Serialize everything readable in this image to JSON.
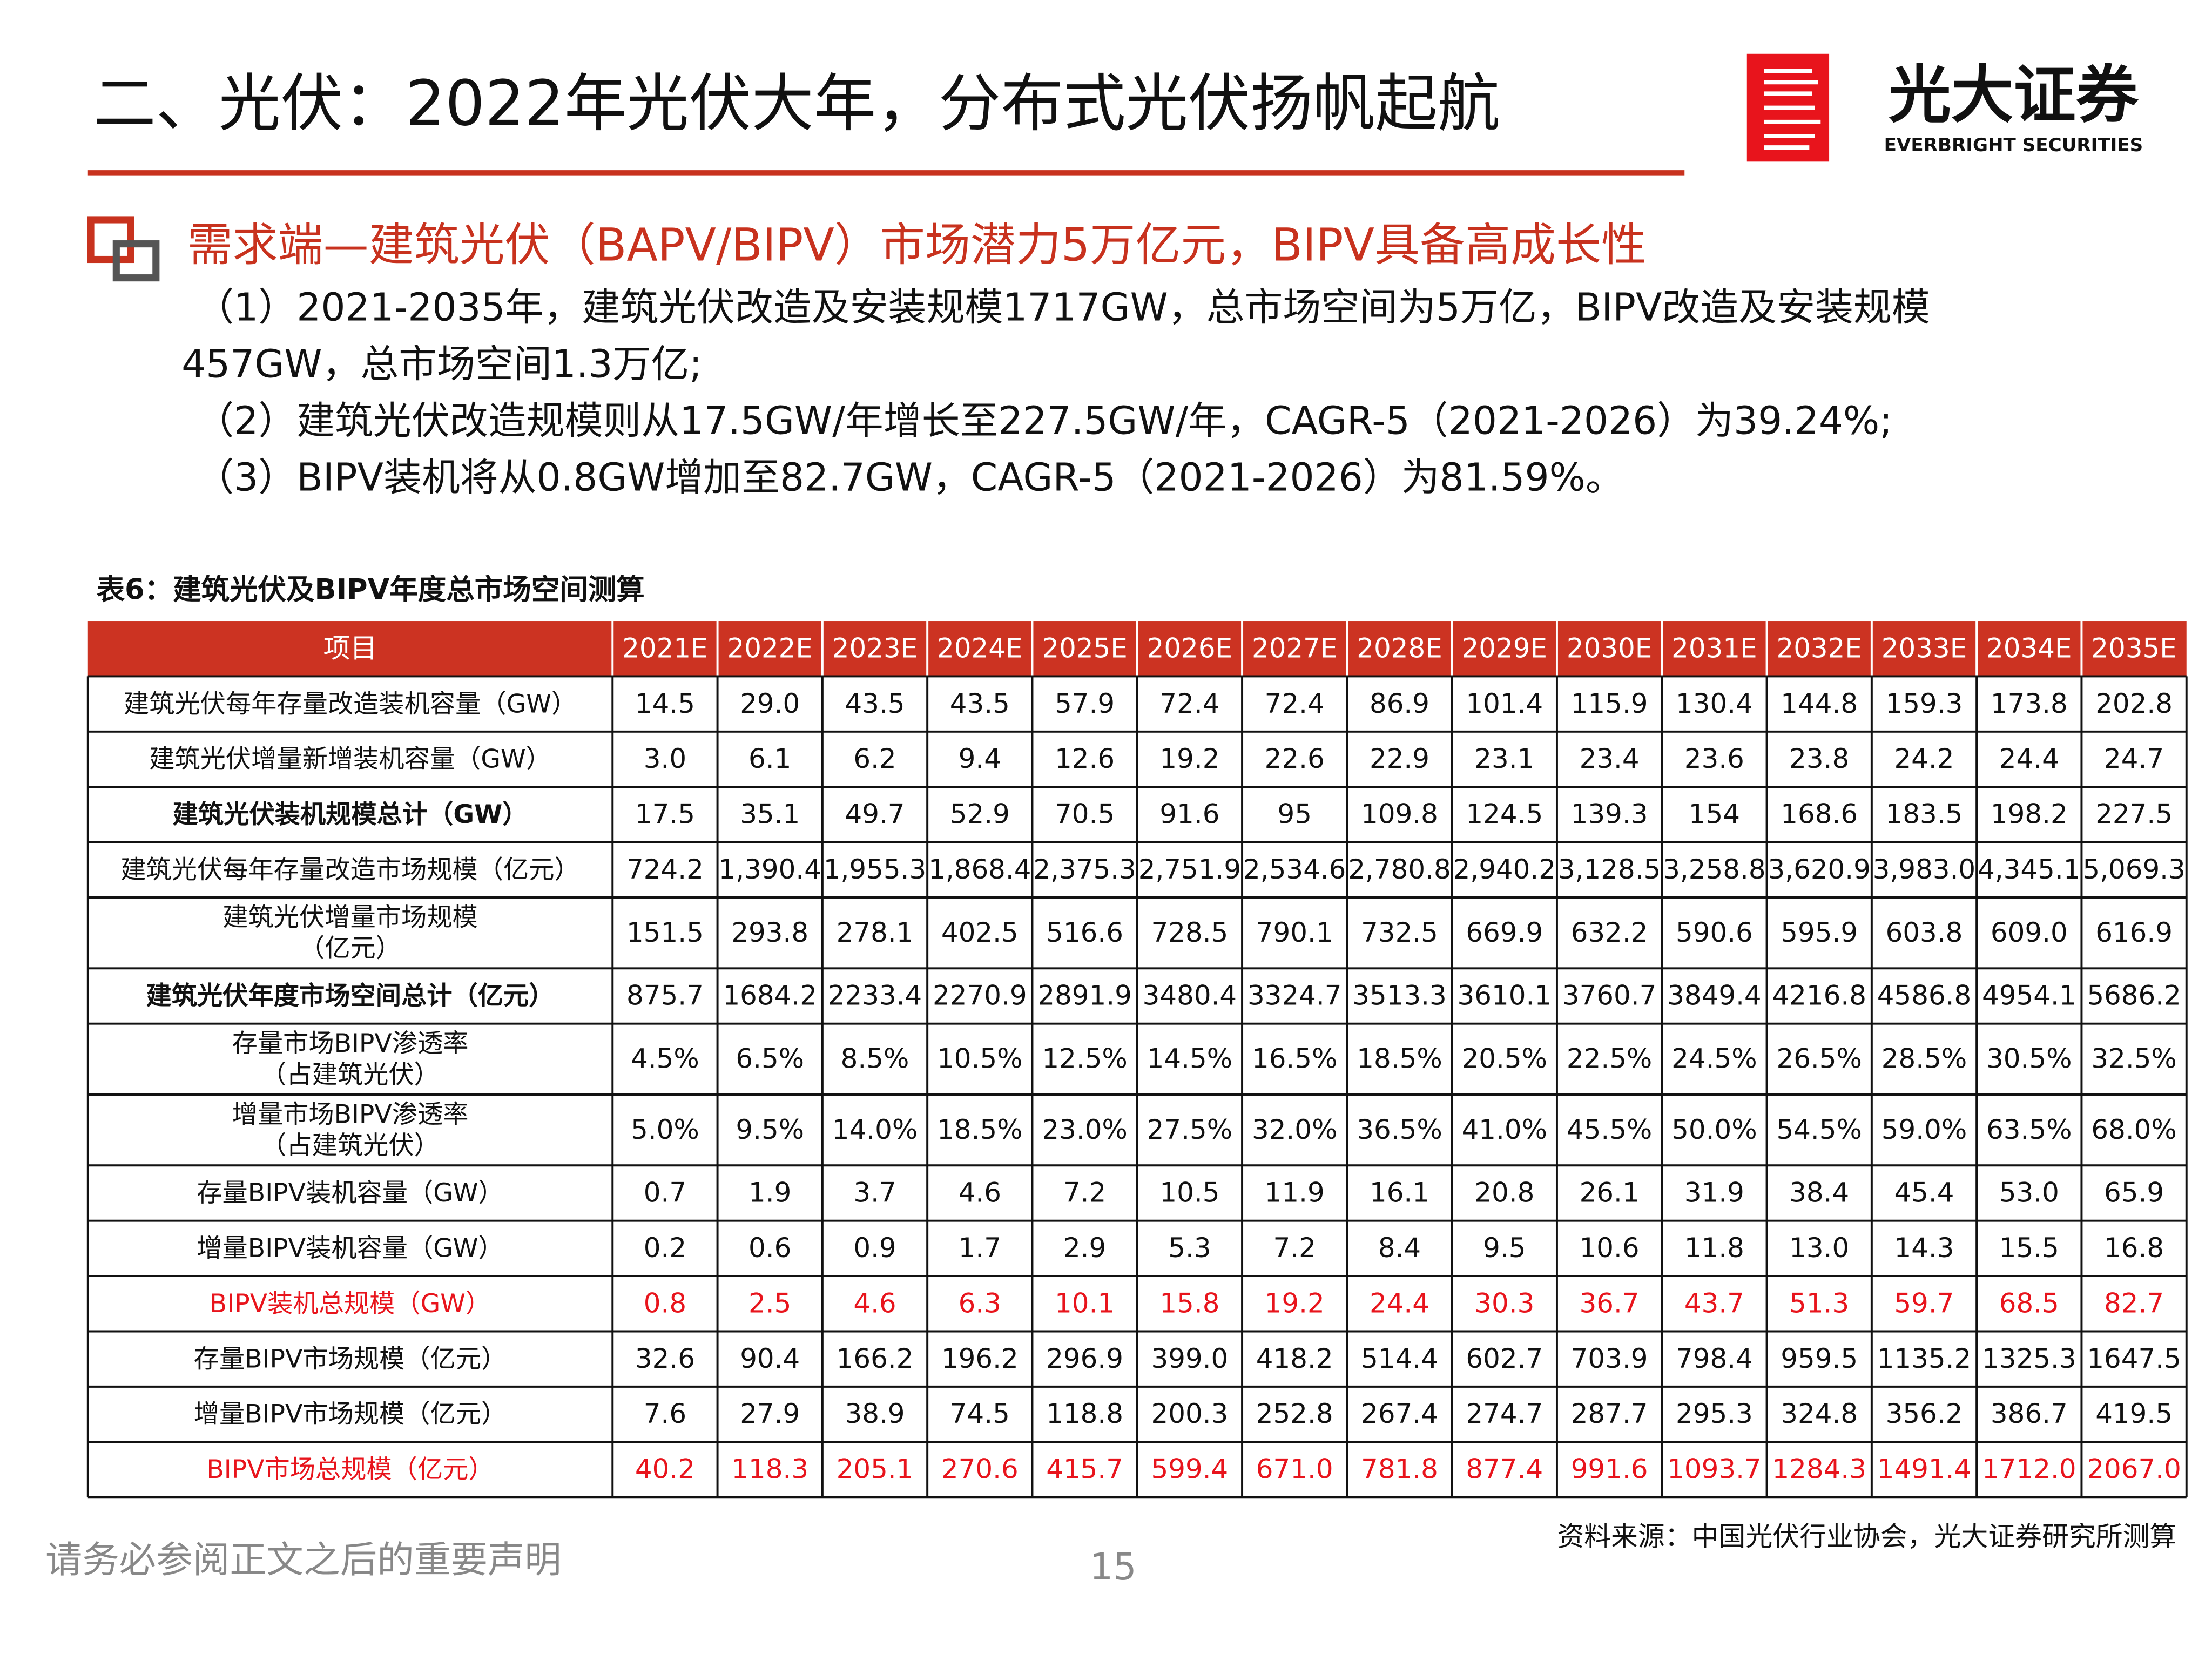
{
  "header": {
    "title": "二、光伏：2022年光伏大年，分布式光伏扬帆起航",
    "logo_name": "光大证券",
    "logo_en": "EVERBRIGHT SECURITIES"
  },
  "subtitle": "需求端—建筑光伏（BAPV/BIPV）市场潜力5万亿元，BIPV具备高成长性",
  "bullets": [
    "（1）2021-2035年，建筑光伏改造及安装规模1717GW，总市场空间为5万亿，BIPV改造及安装规模457GW，总市场空间1.3万亿;",
    "（2）建筑光伏改造规模则从17.5GW/年增长至227.5GW/年，CAGR-5（2021-2026）为39.24%;",
    "（3）BIPV装机将从0.8GW增加至82.7GW，CAGR-5（2021-2026）为81.59%。"
  ],
  "table": {
    "caption": "表6：建筑光伏及BIPV年度总市场空间测算",
    "header": [
      "项目",
      "2021E",
      "2022E",
      "2023E",
      "2024E",
      "2025E",
      "2026E",
      "2027E",
      "2028E",
      "2029E",
      "2030E",
      "2031E",
      "2032E",
      "2033E",
      "2034E",
      "2035E"
    ],
    "header_color": "#cc3322",
    "rows": [
      {
        "label": [
          "建筑光伏每年存量改造装机容量（GW）"
        ],
        "cells": [
          "14.5",
          "29.0",
          "43.5",
          "43.5",
          "57.9",
          "72.4",
          "72.4",
          "86.9",
          "101.4",
          "115.9",
          "130.4",
          "144.8",
          "159.3",
          "173.8",
          "202.8"
        ]
      },
      {
        "label": [
          "建筑光伏增量新增装机容量（GW）"
        ],
        "cells": [
          "3.0",
          "6.1",
          "6.2",
          "9.4",
          "12.6",
          "19.2",
          "22.6",
          "22.9",
          "23.1",
          "23.4",
          "23.6",
          "23.8",
          "24.2",
          "24.4",
          "24.7"
        ]
      },
      {
        "label": [
          "建筑光伏装机规模总计（GW）"
        ],
        "bold": true,
        "cells": [
          "17.5",
          "35.1",
          "49.7",
          "52.9",
          "70.5",
          "91.6",
          "95",
          "109.8",
          "124.5",
          "139.3",
          "154",
          "168.6",
          "183.5",
          "198.2",
          "227.5"
        ]
      },
      {
        "label": [
          "建筑光伏每年存量改造市场规模（亿元）"
        ],
        "cells": [
          "724.2",
          "1,390.4",
          "1,955.3",
          "1,868.4",
          "2,375.3",
          "2,751.9",
          "2,534.6",
          "2,780.8",
          "2,940.2",
          "3,128.5",
          "3,258.8",
          "3,620.9",
          "3,983.0",
          "4,345.1",
          "5,069.3"
        ]
      },
      {
        "label": [
          "建筑光伏增量市场规模",
          "（亿元）"
        ],
        "cells": [
          "151.5",
          "293.8",
          "278.1",
          "402.5",
          "516.6",
          "728.5",
          "790.1",
          "732.5",
          "669.9",
          "632.2",
          "590.6",
          "595.9",
          "603.8",
          "609.0",
          "616.9"
        ]
      },
      {
        "label": [
          "建筑光伏年度市场空间总计（亿元）"
        ],
        "bold": true,
        "cells": [
          "875.7",
          "1684.2",
          "2233.4",
          "2270.9",
          "2891.9",
          "3480.4",
          "3324.7",
          "3513.3",
          "3610.1",
          "3760.7",
          "3849.4",
          "4216.8",
          "4586.8",
          "4954.1",
          "5686.2"
        ]
      },
      {
        "label": [
          "存量市场BIPV渗透率",
          "（占建筑光伏）"
        ],
        "cells": [
          "4.5%",
          "6.5%",
          "8.5%",
          "10.5%",
          "12.5%",
          "14.5%",
          "16.5%",
          "18.5%",
          "20.5%",
          "22.5%",
          "24.5%",
          "26.5%",
          "28.5%",
          "30.5%",
          "32.5%"
        ]
      },
      {
        "label": [
          "增量市场BIPV渗透率",
          "（占建筑光伏）"
        ],
        "cells": [
          "5.0%",
          "9.5%",
          "14.0%",
          "18.5%",
          "23.0%",
          "27.5%",
          "32.0%",
          "36.5%",
          "41.0%",
          "45.5%",
          "50.0%",
          "54.5%",
          "59.0%",
          "63.5%",
          "68.0%"
        ]
      },
      {
        "label": [
          "存量BIPV装机容量（GW）"
        ],
        "cells": [
          "0.7",
          "1.9",
          "3.7",
          "4.6",
          "7.2",
          "10.5",
          "11.9",
          "16.1",
          "20.8",
          "26.1",
          "31.9",
          "38.4",
          "45.4",
          "53.0",
          "65.9"
        ]
      },
      {
        "label": [
          "增量BIPV装机容量（GW）"
        ],
        "cells": [
          "0.2",
          "0.6",
          "0.9",
          "1.7",
          "2.9",
          "5.3",
          "7.2",
          "8.4",
          "9.5",
          "10.6",
          "11.8",
          "13.0",
          "14.3",
          "15.5",
          "16.8"
        ]
      },
      {
        "label": [
          "BIPV装机总规模（GW）"
        ],
        "color": "#e8141c",
        "cells": [
          "0.8",
          "2.5",
          "4.6",
          "6.3",
          "10.1",
          "15.8",
          "19.2",
          "24.4",
          "30.3",
          "36.7",
          "43.7",
          "51.3",
          "59.7",
          "68.5",
          "82.7"
        ]
      },
      {
        "label": [
          "存量BIPV市场规模（亿元）"
        ],
        "cells": [
          "32.6",
          "90.4",
          "166.2",
          "196.2",
          "296.9",
          "399.0",
          "418.2",
          "514.4",
          "602.7",
          "703.9",
          "798.4",
          "959.5",
          "1135.2",
          "1325.3",
          "1647.5"
        ]
      },
      {
        "label": [
          "增量BIPV市场规模（亿元）"
        ],
        "cells": [
          "7.6",
          "27.9",
          "38.9",
          "74.5",
          "118.8",
          "200.3",
          "252.8",
          "267.4",
          "274.7",
          "287.7",
          "295.3",
          "324.8",
          "356.2",
          "386.7",
          "419.5"
        ]
      },
      {
        "label": [
          "BIPV市场总规模（亿元）"
        ],
        "color": "#e8141c",
        "cells": [
          "40.2",
          "118.3",
          "205.1",
          "270.6",
          "415.7",
          "599.4",
          "671.0",
          "781.8",
          "877.4",
          "991.6",
          "1093.7",
          "1284.3",
          "1491.4",
          "1712.0",
          "2067.0"
        ]
      }
    ],
    "source": "资料来源：中国光伏行业协会，光大证券研究所测算"
  },
  "footer": {
    "disclaimer": "请务必参阅正文之后的重要声明",
    "page": "15"
  }
}
